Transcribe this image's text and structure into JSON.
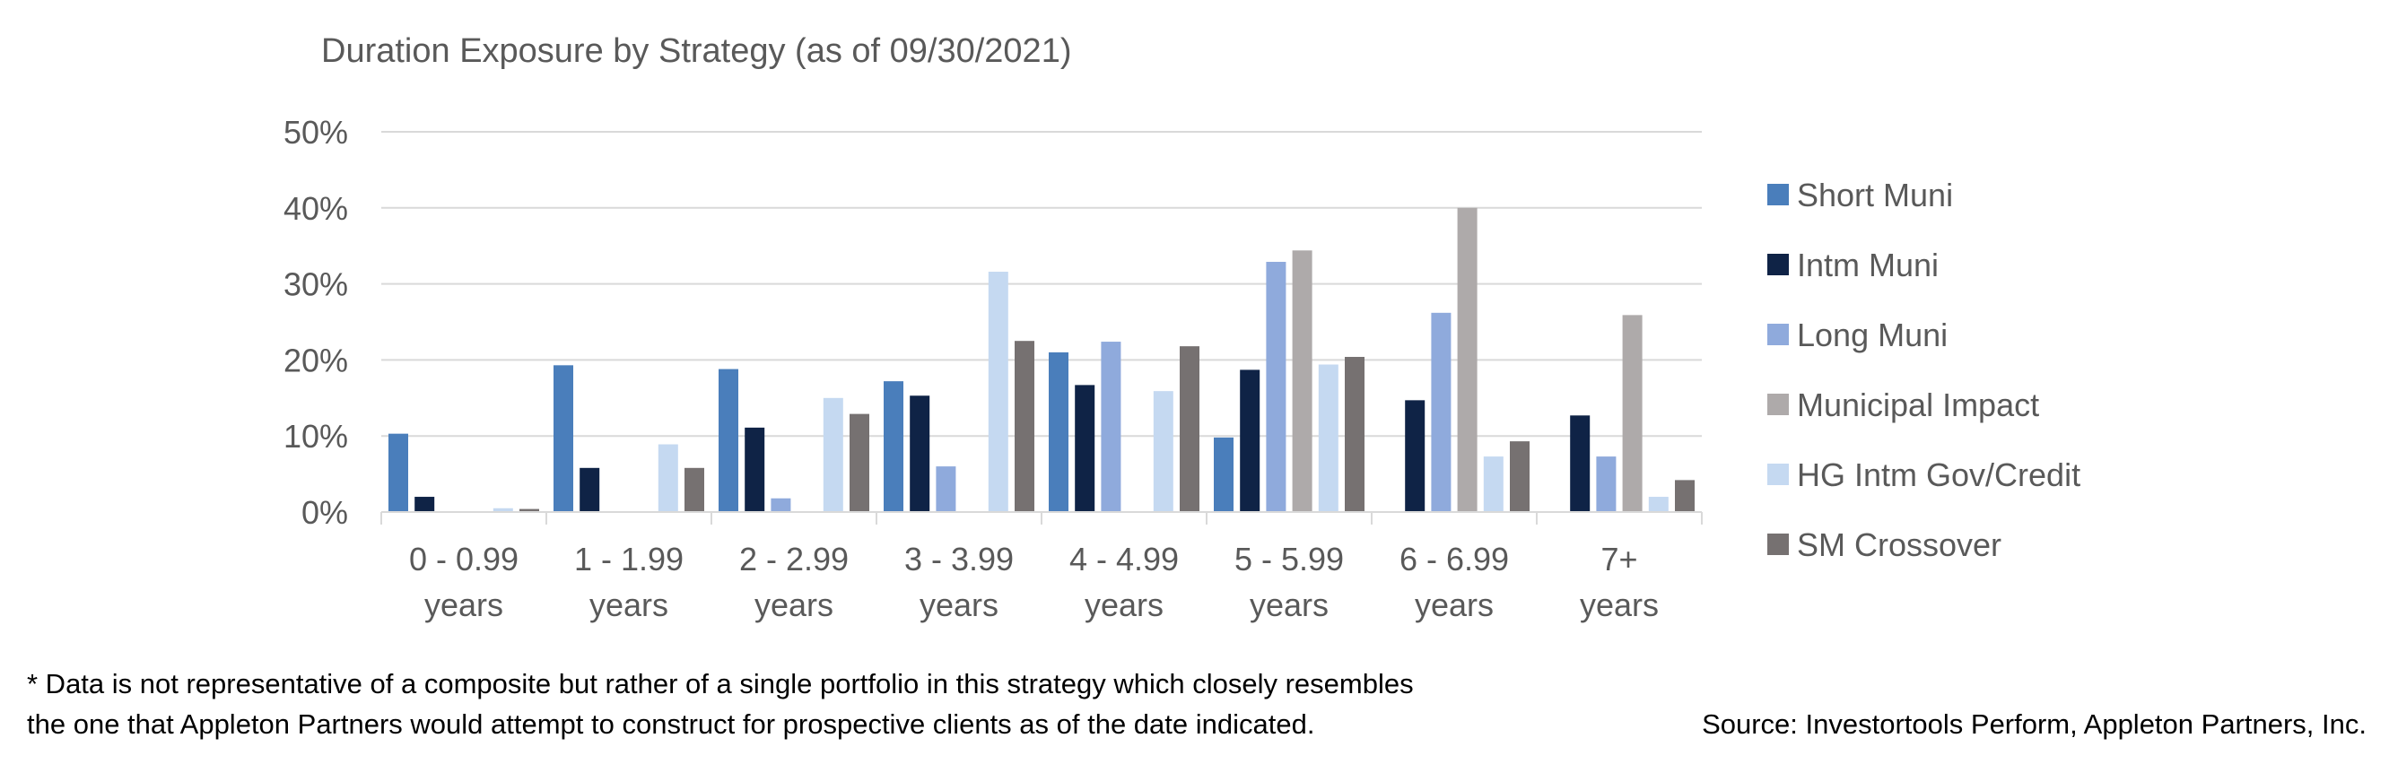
{
  "chart_data": {
    "type": "bar",
    "title": "Duration Exposure by Strategy (as of 09/30/2021)",
    "categories": [
      [
        "0 - 0.99",
        "years"
      ],
      [
        "1 - 1.99",
        "years"
      ],
      [
        "2 - 2.99",
        "years"
      ],
      [
        "3 - 3.99",
        "years"
      ],
      [
        "4 - 4.99",
        "years"
      ],
      [
        "5 - 5.99",
        "years"
      ],
      [
        "6 - 6.99",
        "years"
      ],
      [
        "7+",
        "years"
      ]
    ],
    "series": [
      {
        "name": "Short Muni",
        "color": "#4a7ebb",
        "values": [
          10.3,
          19.3,
          18.8,
          17.2,
          21.0,
          9.8,
          0,
          0
        ]
      },
      {
        "name": "Intm Muni",
        "color": "#0f2346",
        "values": [
          2.0,
          5.8,
          11.1,
          15.3,
          16.7,
          18.7,
          14.7,
          12.7
        ]
      },
      {
        "name": "Long Muni",
        "color": "#8faadc",
        "values": [
          0,
          0,
          1.8,
          6.0,
          22.4,
          32.9,
          26.2,
          7.3
        ]
      },
      {
        "name": "Municipal Impact",
        "color": "#aeaaaa",
        "values": [
          0,
          0,
          0,
          0,
          0,
          34.4,
          40.0,
          25.9
        ]
      },
      {
        "name": "HG Intm Gov/Credit",
        "color": "#c5d9f1",
        "values": [
          0.5,
          8.9,
          15.0,
          31.6,
          15.9,
          19.4,
          7.3,
          2.0
        ]
      },
      {
        "name": "SM Crossover",
        "color": "#767171",
        "values": [
          0.4,
          5.8,
          12.9,
          22.5,
          21.8,
          20.4,
          9.3,
          4.2
        ]
      }
    ],
    "yticks": [
      "0%",
      "10%",
      "20%",
      "30%",
      "40%",
      "50%"
    ],
    "ylim": [
      0,
      50
    ],
    "grid": true,
    "legend": "right"
  },
  "footnote": {
    "line1": "* Data is not representative of a composite but rather of a single portfolio in this strategy which closely resembles",
    "line2": "the one that Appleton Partners would attempt to construct for prospective clients as of the date indicated."
  },
  "source": "Source: Investortools Perform, Appleton Partners, Inc."
}
